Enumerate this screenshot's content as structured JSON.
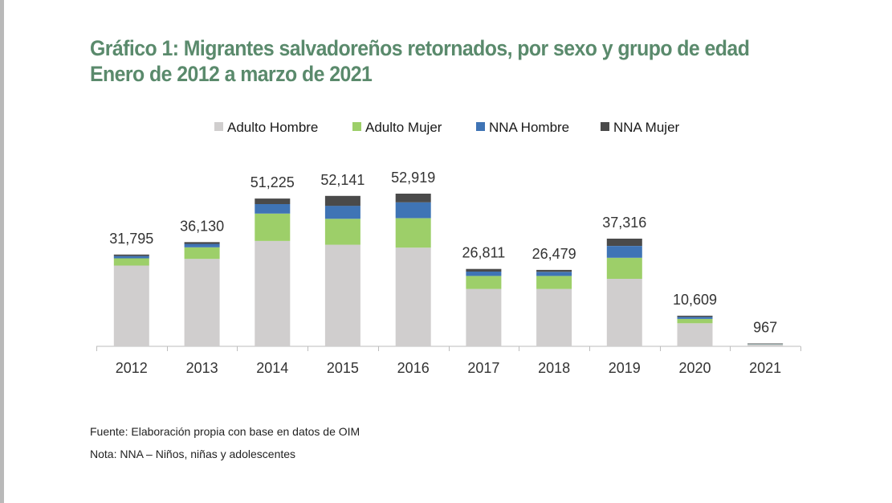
{
  "title": {
    "line1": "Gráfico 1: Migrantes salvadoreños retornados, por sexo y grupo de edad",
    "line2": "Enero de 2012 a marzo de 2021"
  },
  "colors": {
    "adulto_hombre": "#d0cece",
    "adulto_mujer": "#9dcf69",
    "nna_hombre": "#3f74b5",
    "nna_mujer": "#4a4a4a",
    "title": "#5a8a6c"
  },
  "chart_data": {
    "type": "bar",
    "stacked": true,
    "categories": [
      "2012",
      "2013",
      "2014",
      "2015",
      "2016",
      "2017",
      "2018",
      "2019",
      "2020",
      "2021"
    ],
    "series": [
      {
        "name": "Adulto Hombre",
        "values": [
          28000,
          30300,
          36500,
          35200,
          34200,
          19900,
          19900,
          23400,
          8000,
          700
        ]
      },
      {
        "name": "Adulto Mujer",
        "values": [
          2500,
          4000,
          9500,
          9000,
          10200,
          4500,
          4500,
          7300,
          1500,
          150
        ]
      },
      {
        "name": "NNA Hombre",
        "values": [
          800,
          1200,
          3300,
          4500,
          5500,
          1500,
          1400,
          4100,
          700,
          70
        ]
      },
      {
        "name": "NNA Mujer",
        "values": [
          495,
          630,
          1925,
          3441,
          3019,
          911,
          679,
          2516,
          409,
          47
        ]
      }
    ],
    "totals": [
      "31,795",
      "36,130",
      "51,225",
      "52,141",
      "52,919",
      "26,811",
      "26,479",
      "37,316",
      "10,609",
      "967"
    ],
    "legend_position": "top",
    "ylim": [
      0,
      55000
    ],
    "grid": false
  },
  "notes": {
    "source": "Fuente: Elaboración propia con base en datos de OIM",
    "note": "Nota: NNA – Niños, niñas y adolescentes"
  }
}
